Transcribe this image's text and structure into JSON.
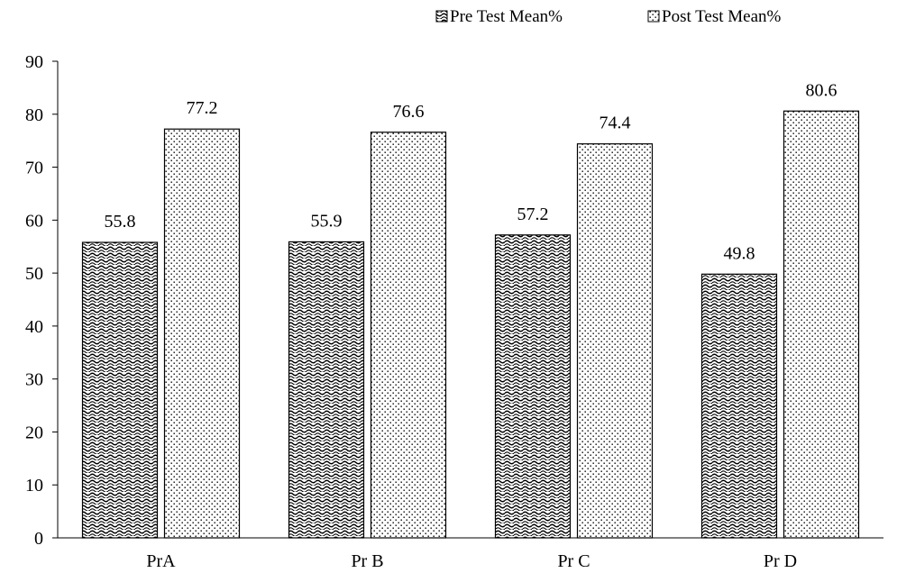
{
  "chart_data": {
    "type": "bar",
    "title": "",
    "xlabel": "",
    "ylabel": "",
    "categories": [
      "PrA",
      "Pr B",
      "Pr C",
      "Pr D"
    ],
    "series": [
      {
        "name": "Pre Test Mean%",
        "values": [
          55.8,
          55.9,
          57.2,
          49.8
        ],
        "pattern": "wave",
        "data_labels": [
          "55.8",
          "55.9",
          "57.2",
          "49.8"
        ]
      },
      {
        "name": "Post Test Mean%",
        "values": [
          77.2,
          76.6,
          74.4,
          80.6
        ],
        "pattern": "dots",
        "data_labels": [
          "77.2",
          "76.6",
          "74.4",
          "80.6"
        ]
      }
    ],
    "ylim": [
      0,
      90
    ],
    "yticks": [
      0,
      10,
      20,
      30,
      40,
      50,
      60,
      70,
      80,
      90
    ],
    "ytick_labels": [
      "0",
      "10",
      "20",
      "30",
      "40",
      "50",
      "60",
      "70",
      "80",
      "90"
    ],
    "grid": false,
    "legend_position": "top-right",
    "colors": {
      "ink": "#000000",
      "background": "#ffffff"
    }
  }
}
